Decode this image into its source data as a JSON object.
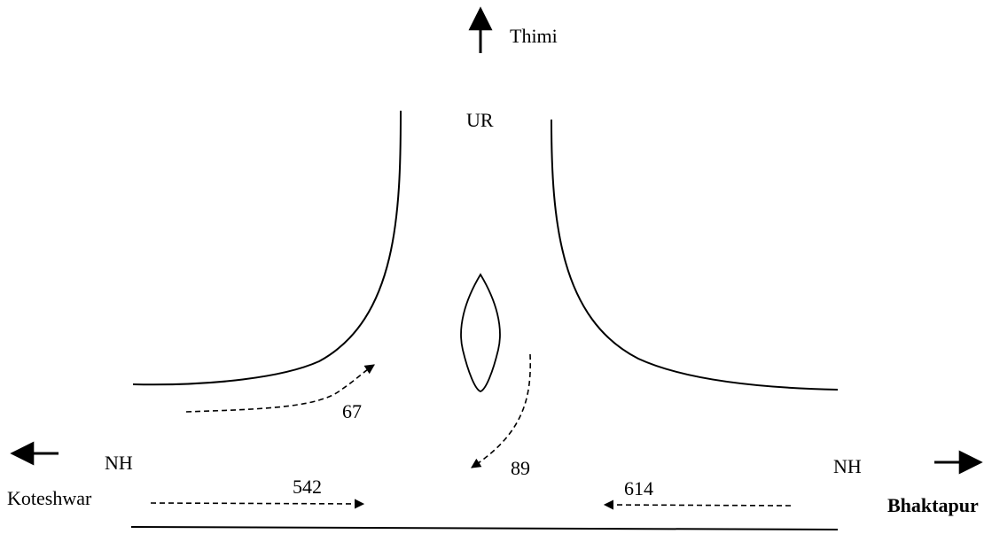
{
  "labels": {
    "north_destination": "Thimi",
    "minor_road": "UR",
    "major_road_west": "NH",
    "major_road_east": "NH",
    "west_destination": "Koteshwar",
    "east_destination": "Bhaktapur"
  },
  "flows": {
    "west_to_north": "67",
    "north_to_west": "89",
    "west_to_east": "542",
    "east_to_west": "614"
  }
}
